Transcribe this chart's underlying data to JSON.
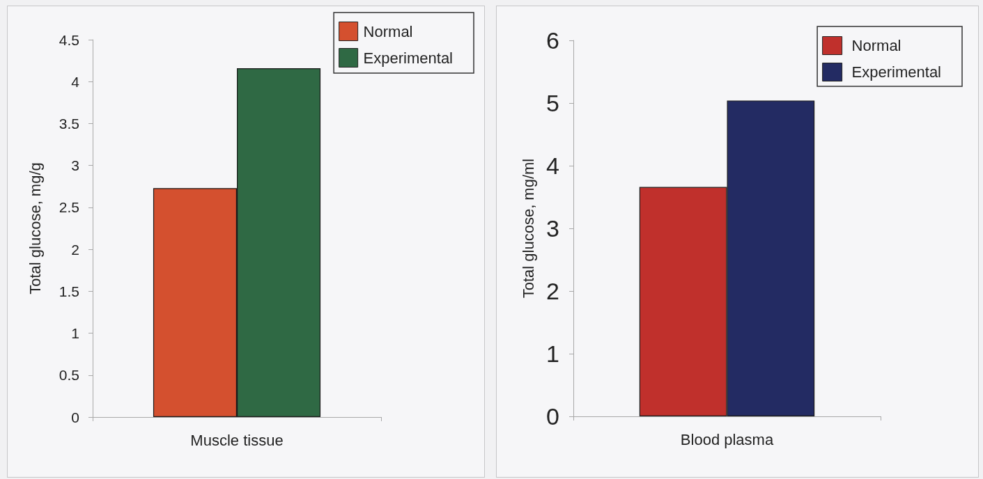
{
  "chart_data": [
    {
      "type": "bar",
      "categories": [
        "Muscle tissue"
      ],
      "ylabel": "Total glucose, mg/g",
      "ylim": [
        0,
        4.5
      ],
      "yticks": [
        0,
        0.5,
        1,
        1.5,
        2,
        2.5,
        3,
        3.5,
        4,
        4.5
      ],
      "legend": "top right",
      "series": [
        {
          "name": "Normal",
          "color": "#d4502f",
          "values": [
            2.73
          ]
        },
        {
          "name": "Experimental",
          "color": "#2f6944",
          "values": [
            4.16
          ]
        }
      ]
    },
    {
      "type": "bar",
      "categories": [
        "Blood plasma"
      ],
      "ylabel": "Total glucose, mg/ml",
      "ylim": [
        0,
        6
      ],
      "yticks": [
        0,
        1,
        2,
        3,
        4,
        5,
        6
      ],
      "legend": "top right",
      "series": [
        {
          "name": "Normal",
          "color": "#c0302c",
          "values": [
            3.66
          ]
        },
        {
          "name": "Experimental",
          "color": "#232b63",
          "values": [
            5.04
          ]
        }
      ]
    }
  ]
}
